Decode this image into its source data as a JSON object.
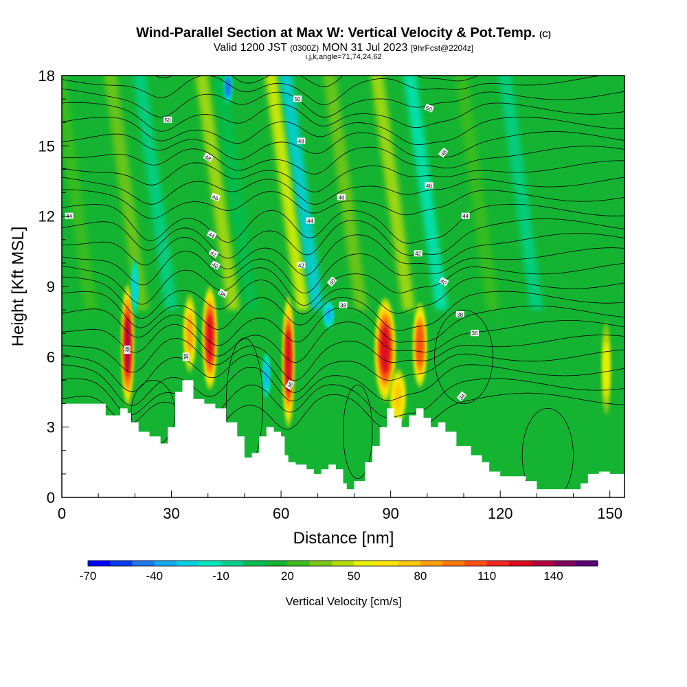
{
  "header": {
    "title": "Wind-Parallel Section at Max W: Vertical Velocity & Pot.Temp.",
    "title_mark": "(C)",
    "valid_prefix": "Valid 1200 JST",
    "valid_utc": "(0300Z)",
    "valid_date": "MON 31 Jul 2023",
    "forecast": "[9hrFcst@2204z]",
    "indices": "i,j,k,angle=71,74,24,62"
  },
  "chart_data": {
    "type": "heatmap",
    "xlabel": "Distance [nm]",
    "ylabel": "Height [Kft MSL]",
    "xlim": [
      0,
      154
    ],
    "ylim": [
      0,
      18
    ],
    "x_ticks": [
      0,
      30,
      60,
      90,
      120,
      150
    ],
    "y_ticks": [
      0,
      3,
      6,
      9,
      12,
      15,
      18
    ],
    "x_tick_labels": [
      "0",
      "30",
      "60",
      "90",
      "120",
      "150"
    ],
    "y_tick_labels": [
      "0",
      "3",
      "6",
      "9",
      "12",
      "15",
      "18"
    ],
    "terrain_top_kft": [
      [
        0,
        4.0
      ],
      [
        10,
        4.0
      ],
      [
        12,
        3.5
      ],
      [
        14,
        3.5
      ],
      [
        16,
        3.8
      ],
      [
        18,
        3.6
      ],
      [
        19,
        3.2
      ],
      [
        21,
        2.8
      ],
      [
        24,
        2.6
      ],
      [
        27,
        2.3
      ],
      [
        29,
        3.0
      ],
      [
        31,
        4.5
      ],
      [
        33,
        5.0
      ],
      [
        35,
        5.0
      ],
      [
        36,
        4.2
      ],
      [
        39,
        4.0
      ],
      [
        42,
        3.8
      ],
      [
        45,
        3.2
      ],
      [
        48,
        2.6
      ],
      [
        50,
        1.7
      ],
      [
        52,
        1.9
      ],
      [
        54,
        2.6
      ],
      [
        56,
        3.0
      ],
      [
        58,
        2.8
      ],
      [
        60,
        2.6
      ],
      [
        61,
        1.8
      ],
      [
        62,
        1.5
      ],
      [
        64,
        1.4
      ],
      [
        67,
        1.2
      ],
      [
        69,
        1.0
      ],
      [
        71,
        1.2
      ],
      [
        73,
        1.4
      ],
      [
        75,
        1.2
      ],
      [
        77,
        0.6
      ],
      [
        78,
        0.35
      ],
      [
        80,
        0.7
      ],
      [
        83,
        1.5
      ],
      [
        85,
        2.2
      ],
      [
        87,
        3.0
      ],
      [
        89,
        3.8
      ],
      [
        91,
        3.4
      ],
      [
        93,
        3.0
      ],
      [
        95,
        3.5
      ],
      [
        97,
        3.8
      ],
      [
        99,
        3.4
      ],
      [
        101,
        3.0
      ],
      [
        103,
        3.2
      ],
      [
        105,
        2.8
      ],
      [
        108,
        2.2
      ],
      [
        112,
        1.8
      ],
      [
        115,
        1.5
      ],
      [
        117,
        1.1
      ],
      [
        120,
        0.9
      ],
      [
        124,
        0.9
      ],
      [
        127,
        0.7
      ],
      [
        130,
        0.35
      ],
      [
        138,
        0.35
      ],
      [
        140,
        0.35
      ],
      [
        142,
        0.6
      ],
      [
        144,
        1.0
      ],
      [
        147,
        1.1
      ],
      [
        150,
        1.0
      ],
      [
        154,
        1.0
      ]
    ],
    "updrafts": [
      {
        "x": 18,
        "y": 6.5,
        "wx": 1.6,
        "wy": 2.6,
        "peak_cm_s": 120
      },
      {
        "x": 40.5,
        "y": 6.8,
        "wx": 1.9,
        "wy": 2.2,
        "peak_cm_s": 115
      },
      {
        "x": 35,
        "y": 7.0,
        "wx": 1.7,
        "wy": 1.7,
        "peak_cm_s": 75
      },
      {
        "x": 62,
        "y": 5.8,
        "wx": 1.5,
        "wy": 2.8,
        "peak_cm_s": 118
      },
      {
        "x": 88.5,
        "y": 6.3,
        "wx": 2.8,
        "wy": 2.2,
        "peak_cm_s": 112
      },
      {
        "x": 98,
        "y": 6.5,
        "wx": 1.8,
        "wy": 1.8,
        "peak_cm_s": 95
      },
      {
        "x": 92,
        "y": 4.3,
        "wx": 2.2,
        "wy": 1.2,
        "peak_cm_s": 65
      },
      {
        "x": 149,
        "y": 5.5,
        "wx": 1.2,
        "wy": 2.0,
        "peak_cm_s": 45
      }
    ],
    "downdrafts": [
      {
        "x": 45.5,
        "y": 17.5,
        "wx": 1.0,
        "wy": 0.7,
        "peak_cm_s": -60
      },
      {
        "x": 73,
        "y": 7.8,
        "wx": 1.3,
        "wy": 0.6,
        "peak_cm_s": -45
      },
      {
        "x": 56,
        "y": 5.2,
        "wx": 0.8,
        "wy": 1.0,
        "peak_cm_s": -42
      },
      {
        "x": 20,
        "y": 9.0,
        "wx": 0.8,
        "wy": 1.2,
        "peak_cm_s": -38
      }
    ],
    "theta_labels": [
      {
        "text": "50",
        "x": 29,
        "y": 16.1,
        "angle": 0
      },
      {
        "text": "50",
        "x": 64.5,
        "y": 17.0,
        "angle": 0
      },
      {
        "text": "50",
        "x": 100.5,
        "y": 16.6,
        "angle": 20
      },
      {
        "text": "48",
        "x": 65.5,
        "y": 15.2,
        "angle": 0
      },
      {
        "text": "48",
        "x": 40,
        "y": 14.5,
        "angle": 30
      },
      {
        "text": "48",
        "x": 104.5,
        "y": 14.7,
        "angle": -50
      },
      {
        "text": "46",
        "x": 42,
        "y": 12.8,
        "angle": 20
      },
      {
        "text": "46",
        "x": 76.5,
        "y": 12.8,
        "angle": 0
      },
      {
        "text": "46",
        "x": 100.5,
        "y": 13.3,
        "angle": 0
      },
      {
        "text": "44",
        "x": 2,
        "y": 12.0,
        "angle": 0
      },
      {
        "text": "44",
        "x": 68,
        "y": 11.8,
        "angle": 0
      },
      {
        "text": "44",
        "x": 110.5,
        "y": 12.0,
        "angle": 0
      },
      {
        "text": "44",
        "x": 41,
        "y": 11.2,
        "angle": 30
      },
      {
        "text": "42",
        "x": 41.5,
        "y": 10.4,
        "angle": 30
      },
      {
        "text": "42",
        "x": 65.5,
        "y": 9.9,
        "angle": 0
      },
      {
        "text": "42",
        "x": 97.5,
        "y": 10.4,
        "angle": 0
      },
      {
        "text": "40",
        "x": 42,
        "y": 9.9,
        "angle": 30
      },
      {
        "text": "40",
        "x": 74,
        "y": 9.2,
        "angle": -50
      },
      {
        "text": "40",
        "x": 104.5,
        "y": 9.2,
        "angle": 30
      },
      {
        "text": "38",
        "x": 44,
        "y": 8.7,
        "angle": 30
      },
      {
        "text": "38",
        "x": 77,
        "y": 8.2,
        "angle": 0
      },
      {
        "text": "38",
        "x": 109,
        "y": 7.8,
        "angle": 0
      },
      {
        "text": "38",
        "x": 18,
        "y": 6.3,
        "angle": -90
      },
      {
        "text": "38",
        "x": 34,
        "y": 6.0,
        "angle": -90
      },
      {
        "text": "36",
        "x": 62.5,
        "y": 4.8,
        "angle": -60
      },
      {
        "text": "36",
        "x": 113,
        "y": 7.0,
        "angle": 0
      },
      {
        "text": "34",
        "x": 109.5,
        "y": 4.3,
        "angle": -50
      }
    ],
    "colorbar": {
      "label": "Vertical Velocity [cm/s]",
      "ticks": [
        "-70",
        "-40",
        "-10",
        "20",
        "50",
        "80",
        "110",
        "140"
      ],
      "colors": [
        "#0000ff",
        "#0a3cf0",
        "#1e78f0",
        "#14aaf0",
        "#00d2e6",
        "#00e6be",
        "#00d28c",
        "#00be50",
        "#14b432",
        "#3cbe1e",
        "#78c814",
        "#b4dc0a",
        "#e6f000",
        "#ffe600",
        "#ffc800",
        "#ffa000",
        "#ff7800",
        "#ff5014",
        "#f0281e",
        "#dc0a1e",
        "#b4003c",
        "#82005a",
        "#5a0078"
      ]
    }
  }
}
